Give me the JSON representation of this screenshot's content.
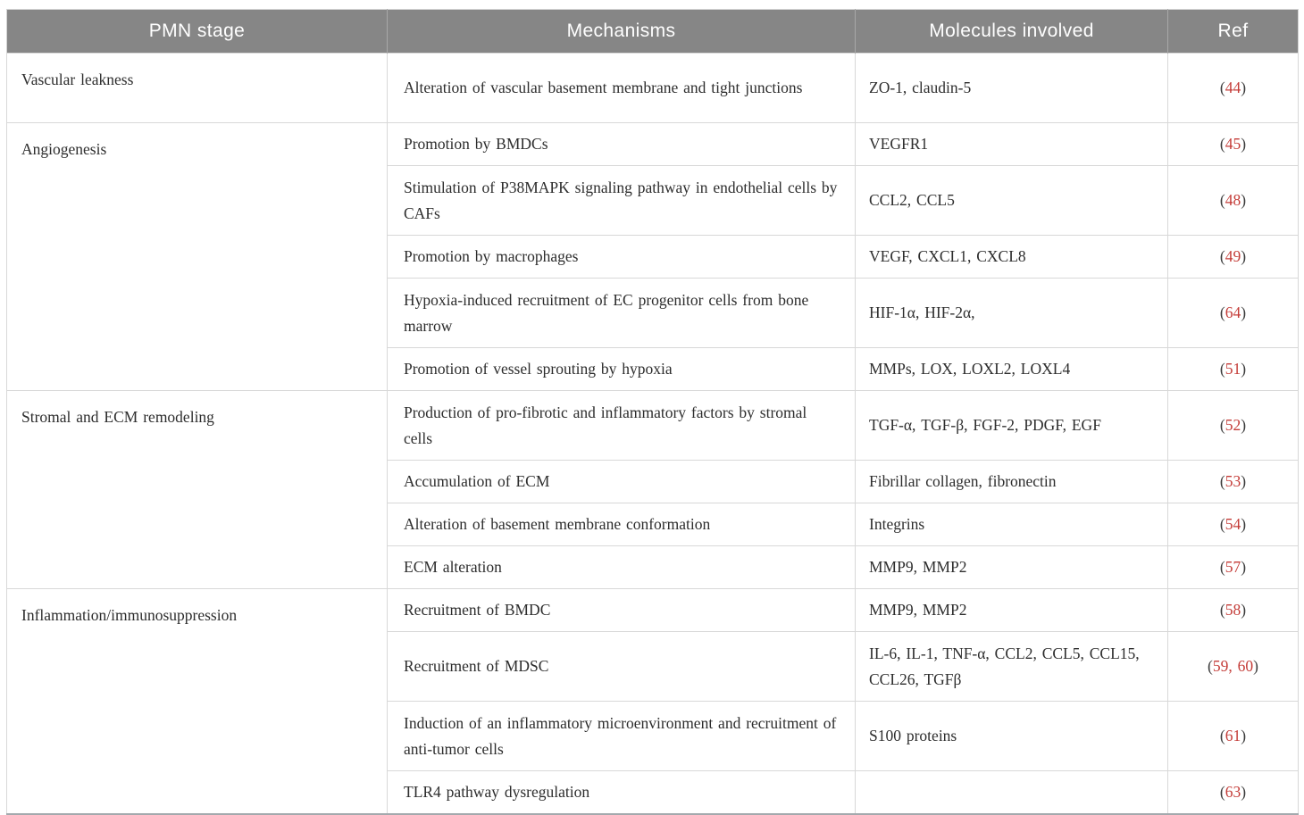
{
  "table": {
    "columns": [
      "PMN stage",
      "Mechanisms",
      "Molecules involved",
      "Ref"
    ],
    "punct": {
      "open": "(",
      "close": ")"
    },
    "colors": {
      "header_bg": "#868686",
      "header_text": "#ffffff",
      "ref_number_red": "#c43c38",
      "body_text": "#2d2d2d",
      "grid_line": "#d8d8d8"
    },
    "sections": [
      {
        "stage": "Vascular leakness",
        "rows": [
          {
            "mechanism": "Alteration of vascular basement membrane and tight junctions",
            "molecules": "ZO-1, claudin-5",
            "ref": "44"
          }
        ]
      },
      {
        "stage": "Angiogenesis",
        "rows": [
          {
            "mechanism": "Promotion by BMDCs",
            "molecules": "VEGFR1",
            "ref": "45"
          },
          {
            "mechanism": "Stimulation of P38MAPK signaling pathway in endothelial cells by CAFs",
            "molecules": "CCL2, CCL5",
            "ref": "48"
          },
          {
            "mechanism": "Promotion by macrophages",
            "molecules": "VEGF, CXCL1, CXCL8",
            "ref": "49"
          },
          {
            "mechanism": "Hypoxia-induced recruitment of EC progenitor cells from bone marrow",
            "molecules": "HIF-1α, HIF-2α,",
            "ref": "64"
          },
          {
            "mechanism": "Promotion of vessel sprouting by hypoxia",
            "molecules": "MMPs, LOX, LOXL2, LOXL4",
            "ref": "51"
          }
        ]
      },
      {
        "stage": "Stromal and ECM remodeling",
        "rows": [
          {
            "mechanism": "Production of pro-fibrotic and inflammatory factors by stromal cells",
            "molecules": "TGF-α, TGF-β, FGF-2, PDGF, EGF",
            "ref": "52"
          },
          {
            "mechanism": "Accumulation of ECM",
            "molecules": "Fibrillar collagen, fibronectin",
            "ref": "53"
          },
          {
            "mechanism": "Alteration of basement membrane conformation",
            "molecules": "Integrins",
            "ref": "54"
          },
          {
            "mechanism": "ECM alteration",
            "molecules": "MMP9, MMP2",
            "ref": "57"
          }
        ]
      },
      {
        "stage": "Inflammation/immunosuppression",
        "rows": [
          {
            "mechanism": "Recruitment of BMDC",
            "molecules": "MMP9, MMP2",
            "ref": "58"
          },
          {
            "mechanism": "Recruitment of MDSC",
            "molecules": "IL-6, IL-1, TNF-α, CCL2, CCL5, CCL15, CCL26, TGFβ",
            "ref": "59, 60"
          },
          {
            "mechanism": "Induction of an inflammatory microenvironment and recruitment of anti-tumor cells",
            "molecules": "S100 proteins",
            "ref": "61"
          },
          {
            "mechanism": "TLR4 pathway dysregulation",
            "molecules": "",
            "ref": "63"
          }
        ]
      }
    ]
  }
}
